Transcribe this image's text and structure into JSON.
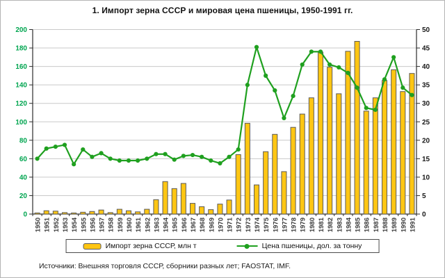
{
  "title": "1. Импорт зерна СССР и мировая цена пшеницы, 1950-1991 гг.",
  "source": "Источники: Внешняя торговля СССР, сборники разных лет; FAOSTAT, IMF.",
  "legend": {
    "bars": "Импорт зерна СССР, млн т",
    "line": "Цена пшеницы, дол. за тонну"
  },
  "colors": {
    "bar": "#FFC613",
    "bar_border": "#5a5a5a",
    "line": "#1FA01F",
    "left_axis_labels": "#00A550",
    "right_axis_labels": "#1a1a1a",
    "grid": "#c9c9c9",
    "axis": "#2b2b2b",
    "year_labels": "#3d3d3d"
  },
  "chart_data": {
    "type": "bar",
    "subtype": "bar+line combo",
    "title": "1. Импорт зерна СССР и мировая цена пшеницы, 1950-1991 гг.",
    "categories": [
      "1950",
      "1951",
      "1952",
      "1953",
      "1954",
      "1955",
      "1956",
      "1957",
      "1958",
      "1959",
      "1960",
      "1961",
      "1962",
      "1963",
      "1964",
      "1965",
      "1966",
      "1967",
      "1968",
      "1969",
      "1970",
      "1971",
      "1972",
      "1973",
      "1974",
      "1975",
      "1976",
      "1977",
      "1978",
      "1979",
      "1980",
      "1981",
      "1982",
      "1983",
      "1984",
      "1985",
      "1986",
      "1987",
      "1988",
      "1989",
      "1990",
      "1991"
    ],
    "series": [
      {
        "name": "Импорт зерна СССР, млн т",
        "type": "bar",
        "axis": "right",
        "values": [
          0.3,
          0.9,
          0.8,
          0.4,
          0.3,
          0.5,
          0.7,
          1.1,
          0.4,
          1.3,
          0.9,
          0.6,
          1.3,
          3.9,
          8.8,
          6.9,
          8.3,
          2.9,
          2.0,
          1.2,
          2.7,
          3.8,
          16.1,
          24.6,
          7.9,
          16.9,
          21.6,
          11.5,
          23.5,
          27.1,
          31.5,
          43.9,
          39.8,
          32.6,
          44.1,
          46.8,
          27.9,
          31.5,
          36.2,
          39.1,
          33.2,
          38.1
        ]
      },
      {
        "name": "Цена пшеницы, дол. за тонну",
        "type": "line",
        "axis": "left",
        "values": [
          60,
          71,
          73,
          75,
          54,
          70,
          62,
          66,
          60,
          58,
          58,
          58,
          60,
          65,
          65,
          59,
          63,
          64,
          62,
          58,
          55,
          62,
          70,
          140,
          181,
          150,
          134,
          104,
          128,
          162,
          176,
          176,
          162,
          159,
          153,
          137,
          115,
          113,
          146,
          170,
          137,
          129
        ]
      }
    ],
    "left_axis": {
      "min": 0,
      "max": 200,
      "step": 20,
      "labels": [
        "0",
        "20",
        "40",
        "60",
        "80",
        "100",
        "120",
        "140",
        "160",
        "180",
        "200"
      ]
    },
    "right_axis": {
      "min": 0,
      "max": 50,
      "step": 5,
      "labels": [
        "0",
        "5",
        "10",
        "15",
        "20",
        "25",
        "30",
        "35",
        "40",
        "45",
        "50"
      ]
    },
    "grid": "horizontal",
    "legend_position": "bottom"
  }
}
